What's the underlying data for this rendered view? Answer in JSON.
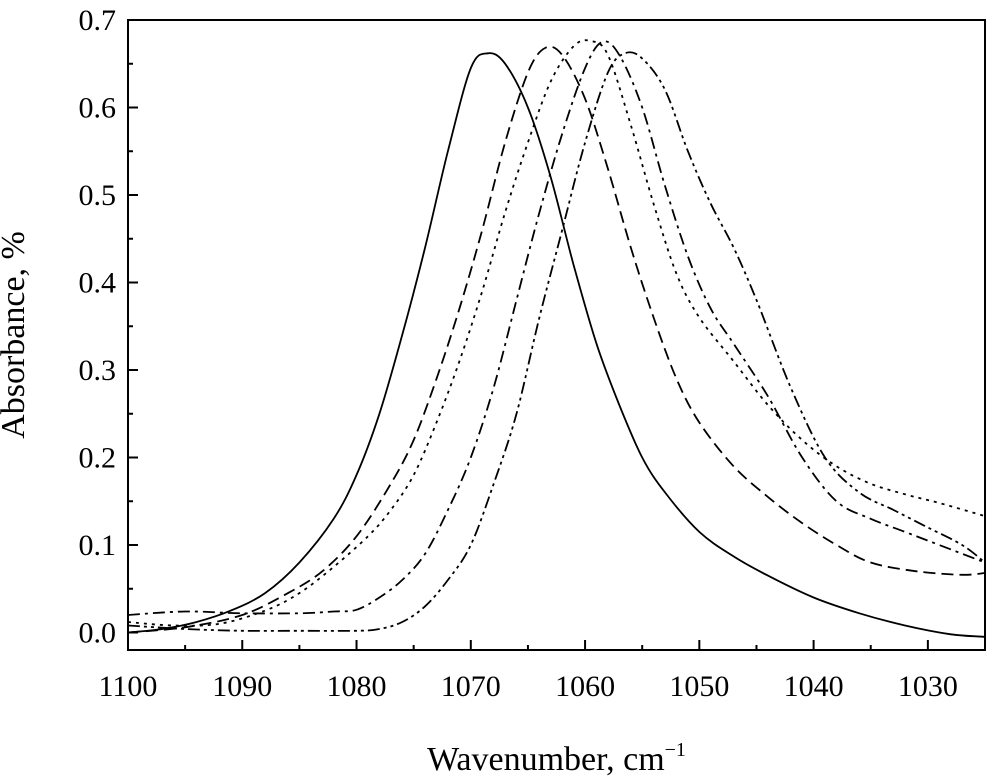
{
  "chart_data": {
    "type": "line",
    "title": "",
    "xlabel": "Wavenumber, cm",
    "xlabel_sup": "−1",
    "ylabel": "Absorbance, %",
    "xlim": [
      1100,
      1025
    ],
    "ylim": [
      -0.02,
      0.7
    ],
    "x_reversed": true,
    "grid": false,
    "legend": "none",
    "x_ticks": [
      1100,
      1090,
      1080,
      1070,
      1060,
      1050,
      1040,
      1030
    ],
    "x_tick_labels": [
      "1100",
      "1090",
      "1080",
      "1070",
      "1060",
      "1050",
      "1040",
      "1030"
    ],
    "y_ticks": [
      0.0,
      0.1,
      0.2,
      0.3,
      0.4,
      0.5,
      0.6,
      0.7
    ],
    "y_tick_labels": [
      "0.0",
      "0.1",
      "0.2",
      "0.3",
      "0.4",
      "0.5",
      "0.6",
      "0.7"
    ],
    "series": [
      {
        "line_style": "solid",
        "x": [
          1100,
          1097,
          1094,
          1091,
          1088,
          1085,
          1082,
          1080,
          1078,
          1076,
          1074,
          1072,
          1070,
          1068.5,
          1067,
          1065,
          1063,
          1061,
          1059,
          1057,
          1055,
          1053,
          1050,
          1047,
          1044,
          1040,
          1036,
          1032,
          1028,
          1025
        ],
        "y": [
          0.0,
          0.004,
          0.012,
          0.025,
          0.045,
          0.08,
          0.13,
          0.18,
          0.25,
          0.34,
          0.44,
          0.55,
          0.645,
          0.662,
          0.65,
          0.6,
          0.52,
          0.42,
          0.33,
          0.26,
          0.2,
          0.16,
          0.115,
          0.087,
          0.065,
          0.04,
          0.022,
          0.008,
          -0.002,
          -0.005
        ]
      },
      {
        "line_style": "dashed",
        "x": [
          1100,
          1095,
          1090,
          1086,
          1083,
          1080,
          1077,
          1075,
          1073,
          1071,
          1069,
          1067,
          1065,
          1063.5,
          1062,
          1060,
          1058,
          1056,
          1054,
          1052,
          1050,
          1047,
          1044,
          1041,
          1038,
          1035,
          1031,
          1027,
          1025
        ],
        "y": [
          0.0,
          0.006,
          0.02,
          0.045,
          0.07,
          0.11,
          0.17,
          0.22,
          0.29,
          0.37,
          0.46,
          0.56,
          0.64,
          0.668,
          0.66,
          0.61,
          0.53,
          0.44,
          0.36,
          0.29,
          0.24,
          0.19,
          0.155,
          0.125,
          0.1,
          0.08,
          0.07,
          0.066,
          0.068
        ]
      },
      {
        "line_style": "dotted",
        "x": [
          1100,
          1096,
          1092,
          1088,
          1085,
          1082,
          1079,
          1077,
          1075,
          1073,
          1071,
          1069,
          1067,
          1065,
          1063,
          1061,
          1059.5,
          1058,
          1056,
          1054,
          1052,
          1050,
          1047,
          1044,
          1041,
          1038,
          1035,
          1032,
          1029,
          1025
        ],
        "y": [
          0.012,
          0.008,
          0.01,
          0.025,
          0.045,
          0.075,
          0.11,
          0.14,
          0.18,
          0.24,
          0.31,
          0.39,
          0.48,
          0.56,
          0.63,
          0.67,
          0.676,
          0.66,
          0.58,
          0.49,
          0.41,
          0.36,
          0.31,
          0.26,
          0.22,
          0.19,
          0.17,
          0.158,
          0.148,
          0.133
        ]
      },
      {
        "line_style": "dash-dot",
        "x": [
          1100,
          1095,
          1090,
          1085,
          1082,
          1080,
          1078,
          1076,
          1074,
          1072,
          1070,
          1068,
          1066,
          1064,
          1062,
          1060,
          1058.5,
          1057,
          1055,
          1053,
          1051,
          1049,
          1047,
          1044,
          1041,
          1038,
          1035,
          1032,
          1029,
          1025
        ],
        "y": [
          0.02,
          0.024,
          0.022,
          0.022,
          0.024,
          0.026,
          0.04,
          0.06,
          0.09,
          0.14,
          0.2,
          0.28,
          0.38,
          0.48,
          0.57,
          0.645,
          0.675,
          0.66,
          0.6,
          0.51,
          0.43,
          0.37,
          0.33,
          0.27,
          0.2,
          0.15,
          0.13,
          0.115,
          0.1,
          0.08
        ]
      },
      {
        "line_style": "dash-dot-dot",
        "x": [
          1100,
          1095,
          1090,
          1085,
          1080,
          1078,
          1076,
          1074,
          1072,
          1070,
          1068,
          1066,
          1064,
          1062,
          1060,
          1058,
          1056.5,
          1055,
          1053,
          1051,
          1049,
          1047,
          1045,
          1042,
          1039,
          1036,
          1033,
          1030,
          1027,
          1025
        ],
        "y": [
          0.008,
          0.004,
          0.002,
          0.002,
          0.002,
          0.004,
          0.012,
          0.03,
          0.06,
          0.1,
          0.17,
          0.25,
          0.36,
          0.46,
          0.56,
          0.64,
          0.662,
          0.656,
          0.62,
          0.55,
          0.49,
          0.44,
          0.38,
          0.28,
          0.2,
          0.16,
          0.14,
          0.12,
          0.1,
          0.08
        ]
      }
    ]
  }
}
